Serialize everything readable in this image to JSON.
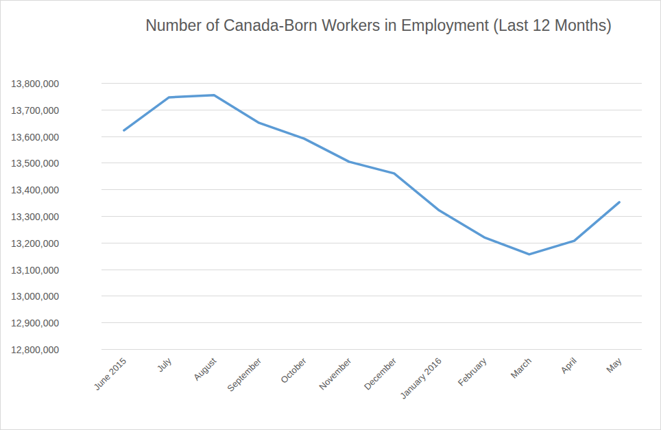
{
  "chart_data": {
    "type": "line",
    "title": "Number of Canada-Born Workers in Employment (Last 12 Months)",
    "categories": [
      "June 2015",
      "July",
      "August",
      "September",
      "October",
      "November",
      "December",
      "January 2016",
      "February",
      "March",
      "April",
      "May"
    ],
    "values": [
      13622000,
      13746000,
      13754000,
      13650000,
      13591000,
      13504000,
      13460000,
      13321000,
      13220000,
      13156000,
      13207000,
      13352000
    ],
    "color": "#5b9bd5",
    "ylim": [
      12800000,
      13800000
    ],
    "yticks": [
      {
        "value": 12800000,
        "label": "12,800,000"
      },
      {
        "value": 12900000,
        "label": "12,900,000"
      },
      {
        "value": 13000000,
        "label": "13,000,000"
      },
      {
        "value": 13100000,
        "label": "13,100,000"
      },
      {
        "value": 13200000,
        "label": "13,200,000"
      },
      {
        "value": 13300000,
        "label": "13,300,000"
      },
      {
        "value": 13400000,
        "label": "13,400,000"
      },
      {
        "value": 13500000,
        "label": "13,500,000"
      },
      {
        "value": 13600000,
        "label": "13,600,000"
      },
      {
        "value": 13700000,
        "label": "13,700,000"
      },
      {
        "value": 13800000,
        "label": "13,800,000"
      }
    ],
    "grid": true
  }
}
